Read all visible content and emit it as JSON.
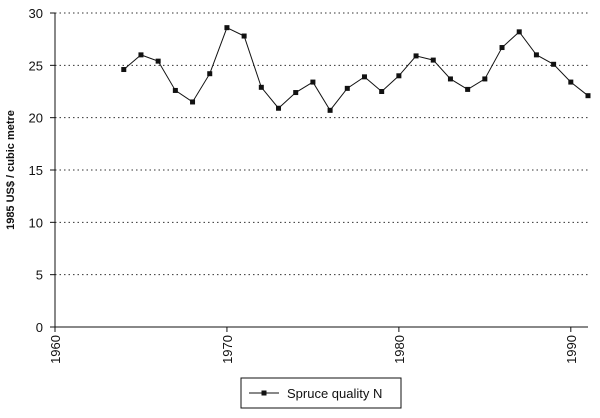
{
  "chart_data": {
    "type": "line",
    "y_label": "1985 US$ / cubic metre",
    "x": [
      1964,
      1965,
      1966,
      1967,
      1968,
      1969,
      1970,
      1971,
      1972,
      1973,
      1974,
      1975,
      1976,
      1977,
      1978,
      1979,
      1980,
      1981,
      1982,
      1983,
      1984,
      1985,
      1986,
      1987,
      1988,
      1989,
      1990,
      1991
    ],
    "series": [
      {
        "name": "Spruce quality N",
        "color": "#111111",
        "values": [
          24.6,
          26.0,
          25.4,
          22.6,
          21.5,
          24.2,
          28.6,
          27.8,
          22.9,
          20.9,
          22.4,
          23.4,
          20.7,
          22.8,
          23.9,
          22.5,
          24.0,
          25.9,
          25.5,
          23.7,
          22.7,
          23.7,
          26.7,
          28.2,
          26.0,
          25.1,
          23.4,
          22.1
        ]
      }
    ],
    "xlim": [
      1960,
      1991
    ],
    "xticks": [
      1960,
      1970,
      1980,
      1990
    ],
    "ylim": [
      0,
      30
    ],
    "yticks": [
      0,
      5,
      10,
      15,
      20,
      25,
      30
    ],
    "grid": true,
    "legend": "bottom"
  }
}
